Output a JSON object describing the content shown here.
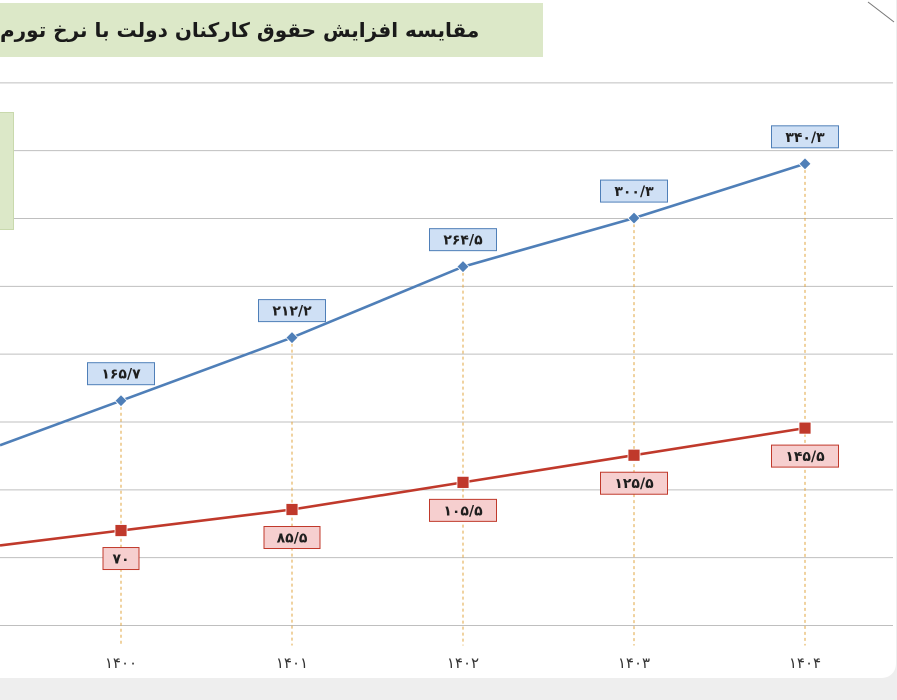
{
  "header": {
    "title": "مقایسه افزایش حقوق کارکنان دولت با نرخ تورم"
  },
  "colors": {
    "series_a": "#4f7fb8",
    "series_b": "#c0392b",
    "label_a_fill": "#cfe0f5",
    "label_b_fill": "#f6cfcf",
    "grid": "#bfbfbf",
    "drop_line": "#e0a640",
    "title_fill": "#dce8c8"
  },
  "chart_data": {
    "type": "line",
    "categories": [
      "۱۴۰۰",
      "۱۴۰۱",
      "۱۴۰۲",
      "۱۴۰۳",
      "۱۴۰۴"
    ],
    "series": [
      {
        "values": [
          165.7,
          212.2,
          264.5,
          300.3,
          340.3
        ],
        "labels": [
          "۱۶۵/۷",
          "۲۱۲/۲",
          "۲۶۴/۵",
          "۳۰۰/۳",
          "۳۴۰/۳"
        ],
        "marker": "diamond"
      },
      {
        "values": [
          70,
          85.5,
          105.5,
          125.5,
          145.5
        ],
        "labels": [
          "۷۰",
          "۸۵/۵",
          "۱۰۵/۵",
          "۱۲۵/۵",
          "۱۴۵/۵"
        ],
        "marker": "square"
      }
    ],
    "ylim": [
      0,
      420
    ],
    "grid": true,
    "legend": "left"
  }
}
